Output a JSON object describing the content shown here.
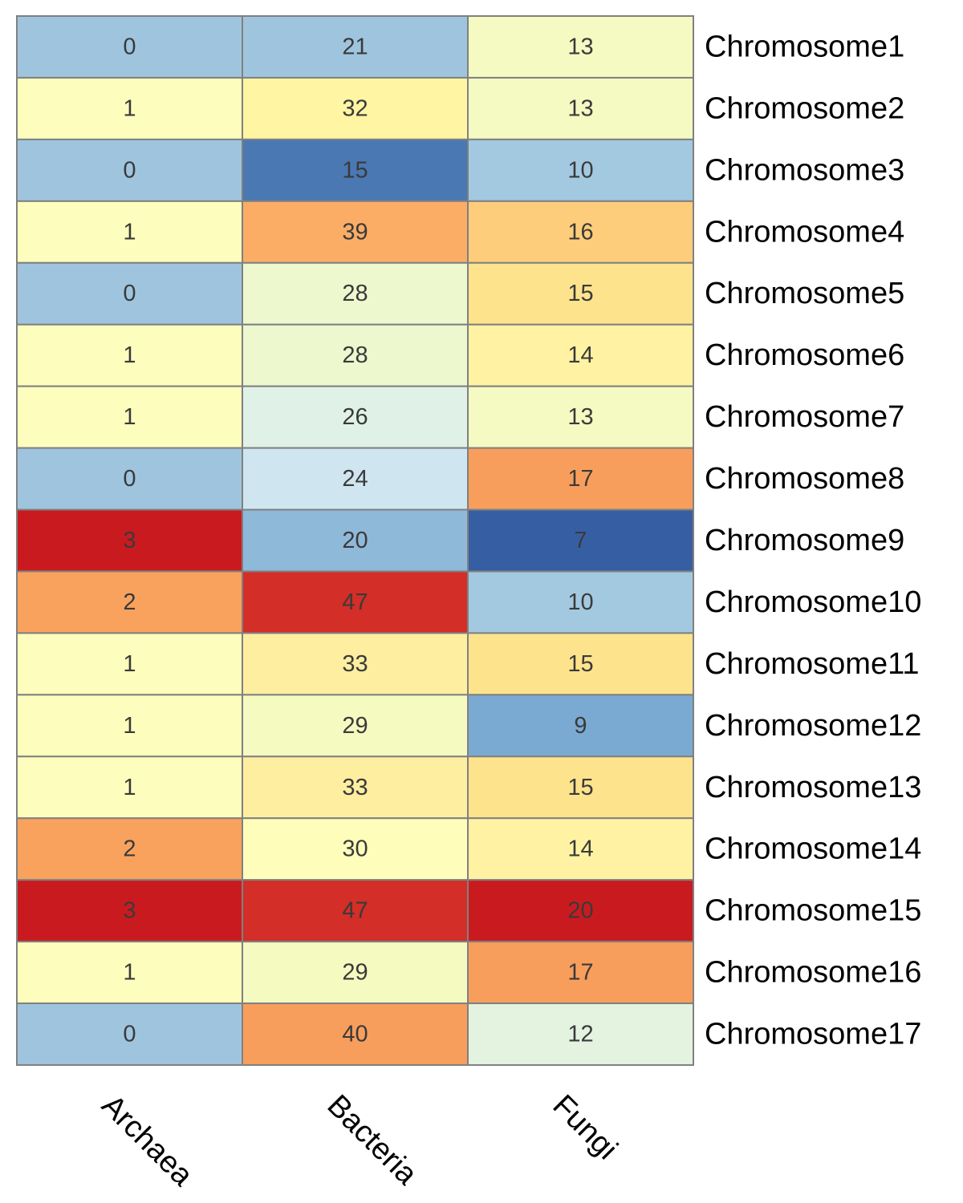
{
  "chart_data": {
    "type": "heatmap",
    "title": "",
    "columns": [
      "Archaea",
      "Bacteria",
      "Fungi"
    ],
    "rows": [
      "Chromosome1",
      "Chromosome2",
      "Chromosome3",
      "Chromosome4",
      "Chromosome5",
      "Chromosome6",
      "Chromosome7",
      "Chromosome8",
      "Chromosome9",
      "Chromosome10",
      "Chromosome11",
      "Chromosome12",
      "Chromosome13",
      "Chromosome14",
      "Chromosome15",
      "Chromosome16",
      "Chromosome17"
    ],
    "values": [
      [
        0,
        21,
        13
      ],
      [
        1,
        32,
        13
      ],
      [
        0,
        15,
        10
      ],
      [
        1,
        39,
        16
      ],
      [
        0,
        28,
        15
      ],
      [
        1,
        28,
        14
      ],
      [
        1,
        26,
        13
      ],
      [
        0,
        24,
        17
      ],
      [
        3,
        20,
        7
      ],
      [
        2,
        47,
        10
      ],
      [
        1,
        33,
        15
      ],
      [
        1,
        29,
        9
      ],
      [
        1,
        33,
        15
      ],
      [
        2,
        30,
        14
      ],
      [
        3,
        47,
        20
      ],
      [
        1,
        29,
        17
      ],
      [
        0,
        40,
        12
      ]
    ],
    "cell_colors": [
      [
        "#9fc5de",
        "#9fc5de",
        "#f4fac1"
      ],
      [
        "#fdfdbd",
        "#fff5a3",
        "#f4fac1"
      ],
      [
        "#9fc5de",
        "#4a78b3",
        "#a3c9e0"
      ],
      [
        "#fdfdbd",
        "#fbad66",
        "#fdcd7c"
      ],
      [
        "#9fc5de",
        "#eef8cf",
        "#fee38d"
      ],
      [
        "#fdfdbd",
        "#eef8cf",
        "#fff3a3"
      ],
      [
        "#fdfdbd",
        "#e0f2e8",
        "#f4fac1"
      ],
      [
        "#9fc5de",
        "#cfe6f0",
        "#f89e5c"
      ],
      [
        "#c91b1f",
        "#8fb9d8",
        "#365fa3"
      ],
      [
        "#f9a25e",
        "#d32e27",
        "#a3c9e0"
      ],
      [
        "#fdfdbd",
        "#feeea0",
        "#fee38d"
      ],
      [
        "#fdfdbd",
        "#f5fac0",
        "#7aaad2"
      ],
      [
        "#fdfdbd",
        "#feeea0",
        "#fee38d"
      ],
      [
        "#f9a25e",
        "#fefeba",
        "#fff3a3"
      ],
      [
        "#c91b1f",
        "#d32e27",
        "#c91b1f"
      ],
      [
        "#fdfdbd",
        "#f5fac0",
        "#f89e5c"
      ],
      [
        "#9fc5de",
        "#f89e5c",
        "#e3f3e0"
      ]
    ],
    "grid": true,
    "legend": "none"
  }
}
